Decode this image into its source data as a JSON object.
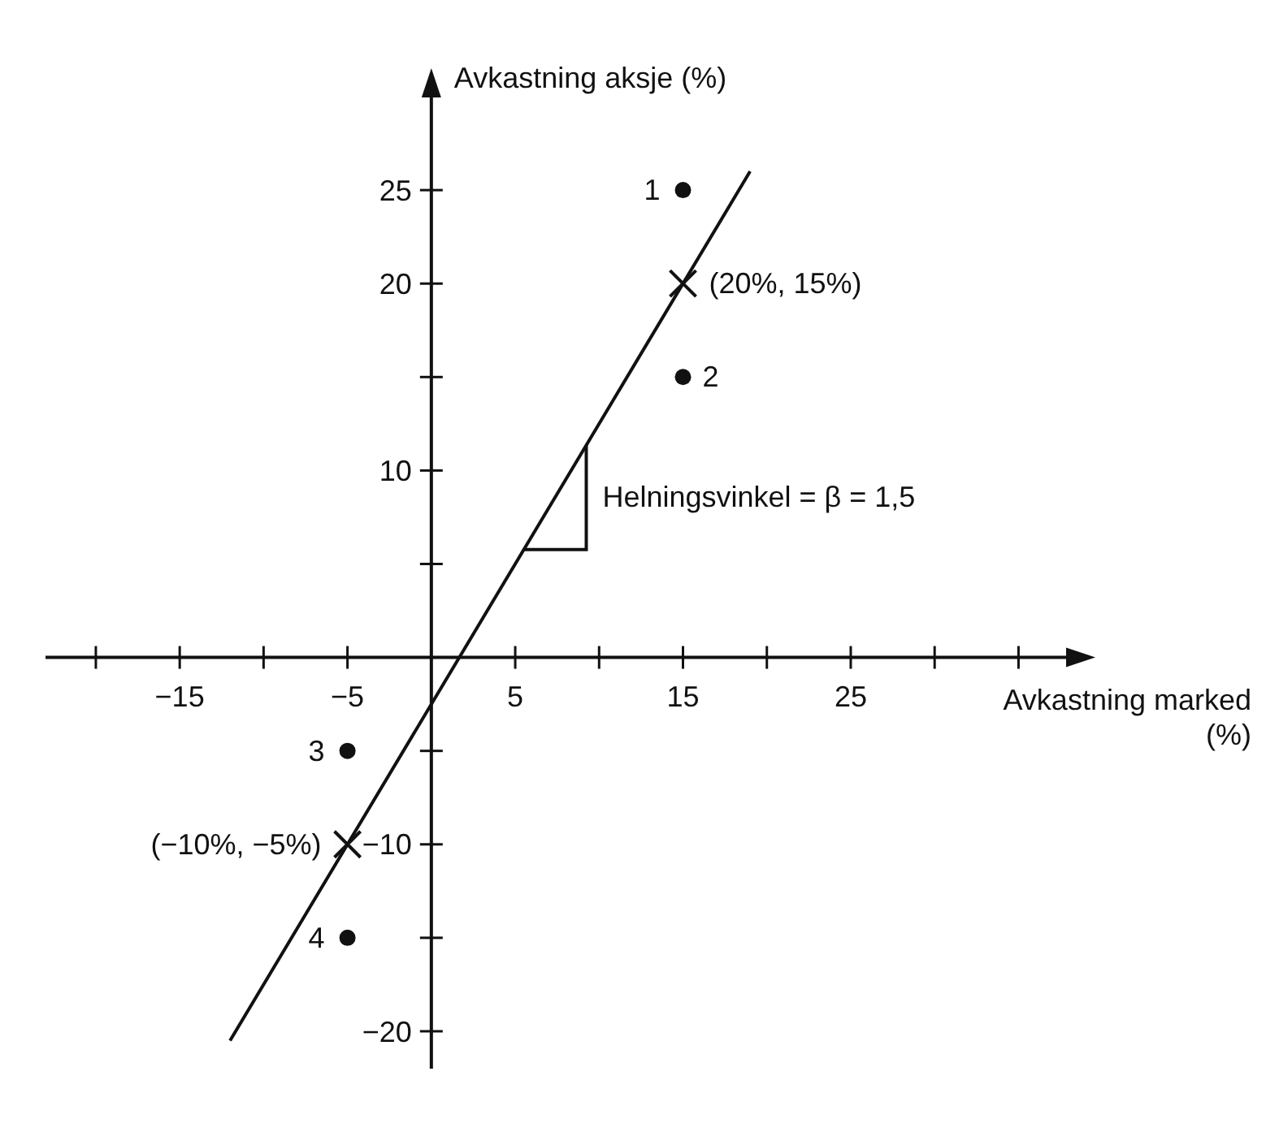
{
  "chart_data": {
    "type": "scatter",
    "xlabel": "Avkastning marked (%)",
    "ylabel": "Avkastning aksje (%)",
    "xlim": [
      -23,
      39
    ],
    "ylim": [
      -22,
      31
    ],
    "xticks": [
      {
        "value": -20,
        "label": null
      },
      -15,
      {
        "value": -10,
        "label": null
      },
      -5,
      5,
      {
        "value": 10,
        "label": null
      },
      15,
      {
        "value": 20,
        "label": null
      },
      25,
      {
        "value": 30,
        "label": null
      },
      {
        "value": 35,
        "label": null
      }
    ],
    "yticks": [
      {
        "value": -20,
        "label": "−20"
      },
      {
        "value": -15,
        "label": null
      },
      {
        "value": -10,
        "label": "−10"
      },
      {
        "value": -5,
        "label": null
      },
      {
        "value": 5,
        "label": null
      },
      10,
      {
        "value": 15,
        "label": null
      },
      20,
      25
    ],
    "series": [
      {
        "color": "#111111",
        "marker": "circle",
        "x": [
          15,
          15,
          -5,
          -5
        ],
        "values": [
          25,
          15,
          -5,
          -15
        ]
      },
      {
        "color": "#111111",
        "marker": "cross",
        "x": [
          15,
          -5
        ],
        "values": [
          20,
          -10
        ]
      },
      {
        "type": "line",
        "color": "#111111",
        "marker": "none",
        "x": [
          -12,
          19
        ],
        "values": [
          -20.5,
          26
        ]
      }
    ],
    "annotations": [
      "1",
      "2",
      "3",
      "4",
      "(20%, 15%)",
      "(−10%, −5%)",
      "Helningsvinkel = β = 1,5"
    ]
  }
}
